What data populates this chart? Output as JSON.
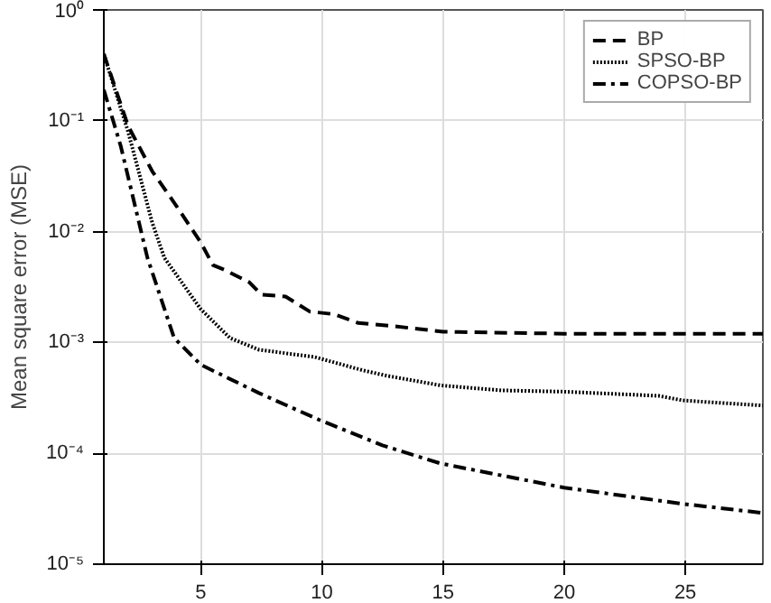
{
  "chart_data": {
    "type": "line",
    "ylabel": "Mean square error (MSE)",
    "log": "y",
    "grid": true,
    "legend": "top right",
    "xlim": [
      1,
      28.2
    ],
    "xticks": [
      5,
      10,
      15,
      20,
      25
    ],
    "ylim": [
      1e-05,
      1
    ],
    "yticks": [
      {
        "value": 1e-05,
        "label": "10⁻⁵"
      },
      {
        "value": 0.0001,
        "label": "10⁻⁴"
      },
      {
        "value": 0.001,
        "label": "10⁻³"
      },
      {
        "value": 0.01,
        "label": "10⁻²"
      },
      {
        "value": 0.1,
        "label": "10⁻¹"
      },
      {
        "value": 1,
        "label": "10⁰"
      }
    ],
    "series": [
      {
        "name": "BP",
        "color": "#000000",
        "line_style": "dashed",
        "x": [
          1,
          2,
          3,
          4,
          5,
          5.5,
          6,
          7,
          7.5,
          8.5,
          9.5,
          10.5,
          11.5,
          13,
          15,
          20,
          25,
          28.2
        ],
        "values": [
          0.4,
          0.09,
          0.035,
          0.017,
          0.008,
          0.005,
          0.0045,
          0.0035,
          0.0027,
          0.0026,
          0.0019,
          0.0018,
          0.0015,
          0.0014,
          0.00125,
          0.0012,
          0.0012,
          0.0012
        ]
      },
      {
        "name": "SPSO-BP",
        "color": "#000000",
        "line_style": "dotted",
        "x": [
          1,
          2,
          3,
          3.5,
          5,
          6.2,
          7.4,
          9.7,
          11.7,
          12.7,
          14.9,
          17.4,
          20,
          23.9,
          24.9,
          28.2
        ],
        "values": [
          0.4,
          0.08,
          0.012,
          0.0058,
          0.002,
          0.0011,
          0.00086,
          0.00074,
          0.00056,
          0.0005,
          0.00041,
          0.00037,
          0.00036,
          0.00033,
          0.0003,
          0.00027
        ]
      },
      {
        "name": "COPSO-BP",
        "color": "#000000",
        "line_style": "dashdot",
        "x": [
          1,
          1.7,
          2.8,
          3.9,
          5,
          7.4,
          9.9,
          12.5,
          14.9,
          20,
          24.9,
          28.2
        ],
        "values": [
          0.19,
          0.059,
          0.0058,
          0.0011,
          0.00063,
          0.00035,
          0.0002,
          0.000118,
          8.1e-05,
          4.9e-05,
          3.5e-05,
          2.9e-05
        ]
      }
    ]
  }
}
